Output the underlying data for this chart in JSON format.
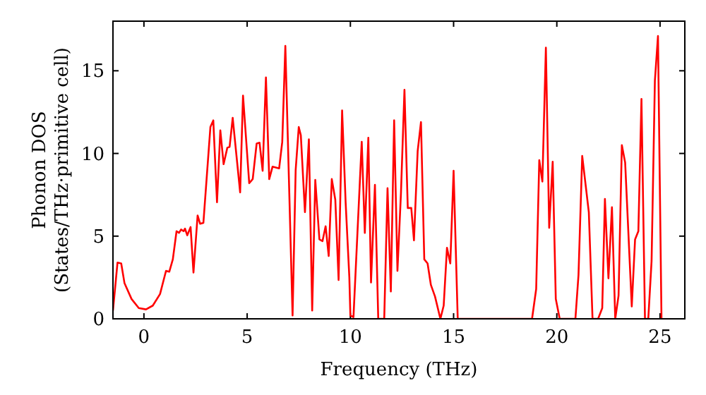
{
  "chart_data": {
    "type": "line",
    "xlabel": "Frequency (THz)",
    "ylabel": "Phonon DOS\n(States/THz·primitive cell)",
    "xlim": [
      -1.5,
      26.2
    ],
    "ylim": [
      0,
      18
    ],
    "xticks": [
      0,
      5,
      10,
      15,
      20,
      25
    ],
    "yticks": [
      0,
      5,
      10,
      15
    ],
    "grid": false,
    "marker": "none",
    "line_style": "solid",
    "series": [
      {
        "color": "#ff0000",
        "x": [
          -1.5,
          -1.28,
          -1.1,
          -0.94,
          -0.6,
          -0.25,
          0.1,
          0.43,
          0.78,
          1.07,
          1.23,
          1.4,
          1.58,
          1.7,
          1.8,
          1.92,
          1.99,
          2.1,
          2.26,
          2.4,
          2.6,
          2.72,
          2.88,
          3.22,
          3.36,
          3.54,
          3.7,
          3.86,
          4.04,
          4.15,
          4.3,
          4.66,
          4.8,
          5.1,
          5.27,
          5.46,
          5.6,
          5.75,
          5.91,
          6.07,
          6.23,
          6.55,
          6.7,
          6.85,
          7.2,
          7.35,
          7.5,
          7.6,
          7.8,
          7.99,
          8.15,
          8.3,
          8.5,
          8.65,
          8.8,
          8.95,
          9.1,
          9.27,
          9.43,
          9.6,
          9.77,
          9.95,
          10.0,
          10.15,
          10.55,
          10.7,
          10.87,
          11.0,
          11.19,
          11.35,
          11.64,
          11.8,
          11.96,
          12.12,
          12.28,
          12.45,
          12.62,
          12.78,
          12.95,
          13.08,
          13.26,
          13.42,
          13.58,
          13.74,
          13.9,
          14.1,
          14.36,
          14.52,
          14.68,
          14.84,
          15.0,
          15.2,
          18.8,
          19.0,
          19.15,
          19.3,
          19.47,
          19.63,
          19.8,
          19.95,
          20.14,
          20.9,
          21.05,
          21.23,
          21.55,
          21.73,
          22.0,
          22.2,
          22.33,
          22.5,
          22.67,
          22.83,
          22.99,
          23.15,
          23.31,
          23.63,
          23.79,
          23.95,
          24.1,
          24.27,
          24.43,
          24.59,
          24.75,
          24.9,
          25.07
        ],
        "values": [
          0.5,
          3.4,
          3.35,
          2.15,
          1.2,
          0.65,
          0.57,
          0.8,
          1.5,
          2.9,
          2.85,
          3.6,
          5.3,
          5.2,
          5.4,
          5.3,
          5.45,
          5.05,
          5.55,
          2.8,
          6.25,
          5.75,
          5.8,
          11.6,
          12.0,
          7.05,
          11.4,
          9.35,
          10.35,
          10.4,
          12.15,
          7.65,
          13.5,
          8.2,
          8.45,
          10.6,
          10.65,
          8.95,
          14.6,
          8.45,
          9.2,
          9.1,
          10.7,
          16.5,
          0.2,
          9.0,
          11.6,
          11.1,
          6.45,
          10.85,
          0.5,
          8.4,
          4.8,
          4.7,
          5.6,
          3.8,
          8.45,
          7.2,
          2.35,
          12.6,
          7.05,
          2.5,
          0.2,
          0.1,
          10.7,
          5.2,
          10.95,
          2.2,
          8.1,
          0,
          0,
          7.9,
          1.65,
          12.0,
          2.9,
          7.6,
          13.85,
          6.7,
          6.7,
          4.75,
          10.15,
          11.9,
          3.6,
          3.35,
          2.05,
          1.35,
          0,
          0.8,
          4.3,
          3.35,
          8.95,
          0,
          0,
          1.8,
          9.6,
          8.3,
          16.4,
          5.5,
          9.5,
          1.2,
          0,
          0,
          2.65,
          9.85,
          6.45,
          0,
          0,
          0.65,
          7.25,
          2.45,
          6.75,
          0,
          1.4,
          10.5,
          9.45,
          0.75,
          4.8,
          5.3,
          13.3,
          0,
          0,
          3.5,
          14.4,
          17.1,
          0
        ]
      }
    ]
  }
}
